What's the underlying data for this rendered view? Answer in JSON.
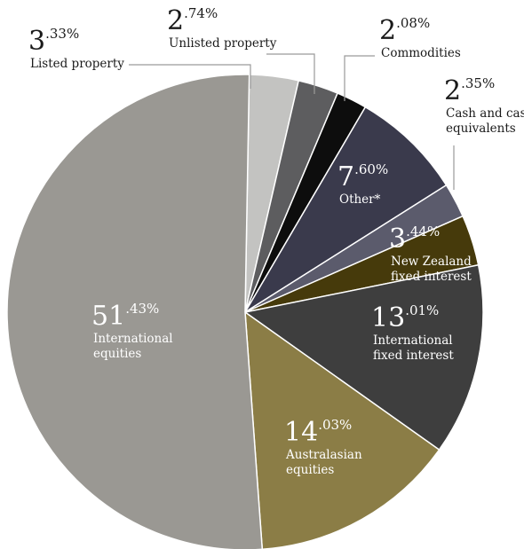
{
  "chart_data": {
    "type": "pie",
    "slices": [
      {
        "name": "Listed property",
        "value": 3.33,
        "int_part": "3",
        "dec_part": ".33%",
        "label_lines": [
          "Listed property"
        ],
        "color": "#c3c3c1"
      },
      {
        "name": "Unlisted property",
        "value": 2.74,
        "int_part": "2",
        "dec_part": ".74%",
        "label_lines": [
          "Unlisted property"
        ],
        "color": "#5d5d5f"
      },
      {
        "name": "Commodities",
        "value": 2.08,
        "int_part": "2",
        "dec_part": ".08%",
        "label_lines": [
          "Commodities"
        ],
        "color": "#0d0d0d"
      },
      {
        "name": "Other*",
        "value": 7.6,
        "int_part": "7",
        "dec_part": ".60%",
        "label_lines": [
          "Other*"
        ],
        "color": "#3a3a4c"
      },
      {
        "name": "Cash and cash equivalents",
        "value": 2.35,
        "int_part": "2",
        "dec_part": ".35%",
        "label_lines": [
          "Cash and cash",
          "equivalents"
        ],
        "color": "#5b5b6c"
      },
      {
        "name": "New Zealand fixed interest",
        "value": 3.44,
        "int_part": "3",
        "dec_part": ".44%",
        "label_lines": [
          "New Zealand",
          "fixed interest"
        ],
        "color": "#463a0b"
      },
      {
        "name": "International fixed interest",
        "value": 13.01,
        "int_part": "13",
        "dec_part": ".01%",
        "label_lines": [
          "International",
          "fixed interest"
        ],
        "color": "#3e3e3e"
      },
      {
        "name": "Australasian equities",
        "value": 14.03,
        "int_part": "14",
        "dec_part": ".03%",
        "label_lines": [
          "Australasian",
          "equities"
        ],
        "color": "#8b7d46"
      },
      {
        "name": "International equities",
        "value": 51.43,
        "int_part": "51",
        "dec_part": ".43%",
        "label_lines": [
          "International",
          "equities"
        ],
        "color": "#9a9893"
      }
    ]
  }
}
